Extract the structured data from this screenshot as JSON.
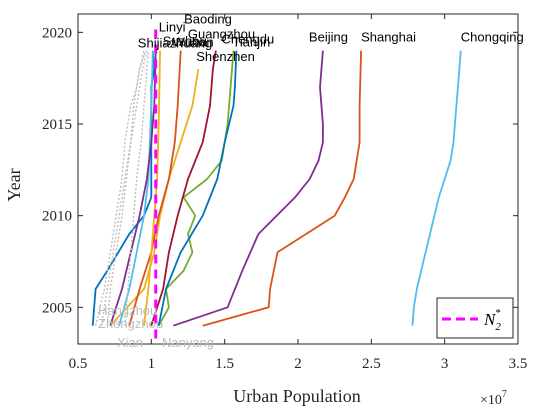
{
  "chart_data": {
    "type": "line",
    "xlabel": "Urban Population",
    "ylabel": "Year",
    "x_exponent_label": "×10",
    "x_exponent_power": "7",
    "xlim": [
      0.5,
      3.5
    ],
    "ylim": [
      2003,
      2021
    ],
    "x_scale_factor": 10000000,
    "xticks": [
      "0.5",
      "1",
      "1.5",
      "2",
      "2.5",
      "3",
      "3.5"
    ],
    "yticks": [
      "2005",
      "2010",
      "2015",
      "2020"
    ],
    "legend": {
      "placement": "bottom-right",
      "label": "N",
      "subscript": "2",
      "superscript": "*",
      "color": "#ff00ff"
    },
    "threshold_line": {
      "x": 1.03,
      "y_from": 2003.3,
      "y_to": 2020.3,
      "color": "#ff00ff",
      "style": "dashed"
    },
    "series": [
      {
        "name": "Chongqing",
        "color": "#4dbeee",
        "x": [
          2.78,
          2.79,
          2.81,
          2.84,
          2.87,
          2.9,
          2.93,
          2.96,
          3.0,
          3.04,
          3.06,
          3.07,
          3.09,
          3.11
        ],
        "y": [
          2004,
          2005,
          2006,
          2007,
          2008,
          2009,
          2010,
          2011,
          2012,
          2013,
          2014,
          2015,
          2017,
          2019
        ],
        "label_color": "#000000"
      },
      {
        "name": "Shanghai",
        "color": "#d95319",
        "x": [
          1.35,
          1.8,
          1.81,
          1.86,
          2.25,
          2.32,
          2.38,
          2.42,
          2.42,
          2.43
        ],
        "y": [
          2004,
          2005,
          2006,
          2008,
          2010,
          2011,
          2012,
          2014,
          2016,
          2019
        ],
        "label_color": "#000000"
      },
      {
        "name": "Beijing",
        "color": "#7e2f8e",
        "x": [
          1.15,
          1.52,
          1.62,
          1.73,
          1.98,
          2.08,
          2.14,
          2.17,
          2.17,
          2.15,
          2.17
        ],
        "y": [
          2004,
          2005,
          2007,
          2009,
          2011,
          2012,
          2013,
          2014,
          2015,
          2017,
          2019
        ],
        "label_color": "#000000"
      },
      {
        "name": "Chengdu",
        "color": "#77ac30",
        "x": [
          1.05,
          1.12,
          1.1,
          1.22,
          1.28,
          1.25,
          1.3,
          1.22,
          1.38,
          1.48,
          1.52,
          1.56
        ],
        "y": [
          2004,
          2005,
          2006,
          2007,
          2008,
          2009,
          2010,
          2011,
          2012,
          2013,
          2015,
          2019
        ],
        "label_color": "#000000"
      },
      {
        "name": "Tianjin",
        "color": "#0072bd",
        "x": [
          1.05,
          1.1,
          1.2,
          1.35,
          1.45,
          1.5,
          1.56,
          1.57,
          1.58
        ],
        "y": [
          2004,
          2006,
          2008,
          2010,
          2012,
          2014,
          2016,
          2017,
          2019
        ],
        "label_color": "#000000"
      },
      {
        "name": "Guangzhou",
        "color": "#a2142f",
        "x": [
          1.0,
          1.08,
          1.12,
          1.18,
          1.25,
          1.35,
          1.4,
          1.42,
          1.44
        ],
        "y": [
          2004,
          2006,
          2008,
          2010,
          2012,
          2014,
          2016,
          2018,
          2019
        ],
        "label_color": "#000000"
      },
      {
        "name": "Shenzhen",
        "color": "#edb120",
        "x": [
          0.72,
          0.95,
          1.02,
          1.06,
          1.12,
          1.2,
          1.28,
          1.32
        ],
        "y": [
          2004,
          2006,
          2008,
          2010,
          2012,
          2014,
          2016,
          2018
        ],
        "label_color": "#000000"
      },
      {
        "name": "Wuhan",
        "color": "#d95319",
        "x": [
          0.85,
          0.92,
          1.0,
          1.05,
          1.12,
          1.16,
          1.18,
          1.2
        ],
        "y": [
          2004,
          2006,
          2008,
          2010,
          2012,
          2014,
          2016,
          2019
        ],
        "label_color": "#000000"
      },
      {
        "name": "Shijiazhuang",
        "color": "#0072bd",
        "x": [
          0.6,
          0.62,
          0.7,
          0.85,
          0.95,
          1.0,
          1.0,
          1.0,
          1.0,
          1.02,
          1.01
        ],
        "y": [
          2004,
          2006,
          2007,
          2009,
          2010,
          2011,
          2013,
          2015,
          2017,
          2018,
          2019
        ],
        "label_color": "#000000"
      },
      {
        "name": "Linyi",
        "color": "#4dbeee",
        "x": [
          0.78,
          0.85,
          0.9,
          0.95,
          0.98,
          0.99,
          1.0,
          1.01
        ],
        "y": [
          2004,
          2006,
          2008,
          2010,
          2012,
          2014,
          2016,
          2019
        ],
        "label_color": "#000000"
      },
      {
        "name": "Suzhou",
        "color": "#7e2f8e",
        "x": [
          0.72,
          0.8,
          0.86,
          0.92,
          0.97,
          1.0,
          1.02,
          1.03
        ],
        "y": [
          2004,
          2006,
          2008,
          2010,
          2012,
          2014,
          2016,
          2019
        ],
        "label_color": "#000000"
      },
      {
        "name": "Baoding",
        "color": "#edb120",
        "x": [
          0.95,
          0.98,
          1.0,
          1.02,
          1.04,
          1.05,
          1.06
        ],
        "y": [
          2004,
          2006,
          2008,
          2010,
          2012,
          2015,
          2019
        ],
        "label_color": "#000000"
      },
      {
        "name": "Hangzhou",
        "color": "#bdbdbd",
        "x": [
          0.62,
          0.68,
          0.72,
          0.76,
          0.8,
          0.82,
          0.86,
          0.9,
          0.92,
          0.96
        ],
        "y": [
          2004,
          2006,
          2008,
          2010,
          2012,
          2014,
          2016,
          2017,
          2018,
          2019
        ],
        "dashed": true,
        "label_color": "#bdbdbd"
      },
      {
        "name": "Zhengzhou",
        "color": "#bdbdbd",
        "x": [
          0.66,
          0.7,
          0.74,
          0.78,
          0.82,
          0.86,
          0.88,
          0.92,
          0.95
        ],
        "y": [
          2004,
          2006,
          2008,
          2010,
          2012,
          2014,
          2016,
          2018,
          2019
        ],
        "dashed": true,
        "label_color": "#bdbdbd"
      },
      {
        "name": "Xian",
        "color": "#bdbdbd",
        "x": [
          0.7,
          0.72,
          0.76,
          0.8,
          0.83,
          0.86,
          0.9,
          0.94,
          0.97
        ],
        "y": [
          2004,
          2006,
          2008,
          2010,
          2012,
          2014,
          2016,
          2018,
          2019
        ],
        "dashed": true,
        "label_color": "#bdbdbd"
      },
      {
        "name": "Nanyang",
        "color": "#bdbdbd",
        "x": [
          0.82,
          0.84,
          0.86,
          0.88,
          0.9,
          0.93,
          0.95,
          0.97,
          0.98
        ],
        "y": [
          2004,
          2006,
          2008,
          2010,
          2012,
          2014,
          2016,
          2018,
          2019
        ],
        "dashed": true,
        "label_color": "#bdbdbd"
      }
    ]
  }
}
